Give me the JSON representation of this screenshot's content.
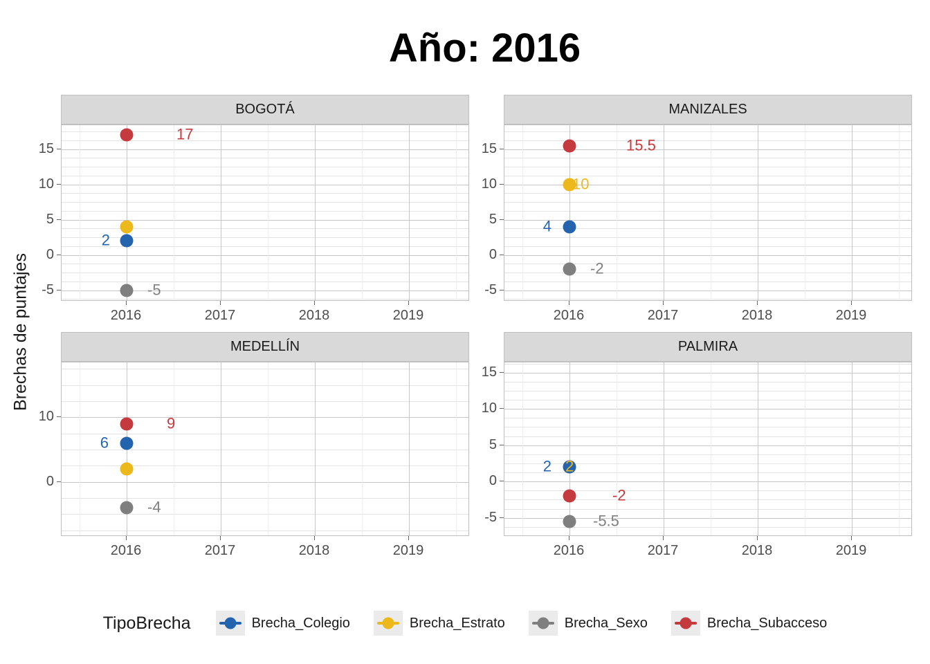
{
  "title": "Año: 2016",
  "ylabel": "Brechas de puntajes",
  "legend": {
    "title": "TipoBrecha"
  },
  "chart_data": {
    "type": "scatter",
    "facet_variable": "city",
    "x_variable": "year",
    "x_ticks": [
      2016,
      2017,
      2018,
      2019
    ],
    "xlim": [
      2015.3,
      2019.65
    ],
    "grid": "on",
    "legend_position": "bottom",
    "series": [
      {
        "name": "Brecha_Colegio",
        "color": "#2464AE"
      },
      {
        "name": "Brecha_Estrato",
        "color": "#EDB81C"
      },
      {
        "name": "Brecha_Sexo",
        "color": "#7F7F7F"
      },
      {
        "name": "Brecha_Subacceso",
        "color": "#C53A3D"
      }
    ],
    "panels": [
      {
        "name": "BOGOTÁ",
        "row": 0,
        "col": 0,
        "ylim": [
          -6.6,
          18.4
        ],
        "yticks": [
          -5,
          0,
          5,
          10,
          15
        ],
        "tick_step": 5,
        "points": [
          {
            "series": "Brecha_Estrato",
            "x": 2016,
            "y": 4,
            "label": null
          },
          {
            "series": "Brecha_Colegio",
            "x": 2016,
            "y": 2,
            "label": "2",
            "label_dx": -24,
            "label_anchor": "end"
          },
          {
            "series": "Brecha_Sexo",
            "x": 2016,
            "y": -5,
            "label": "-5",
            "label_dx": 30,
            "label_anchor": "start"
          },
          {
            "series": "Brecha_Subacceso",
            "x": 2016,
            "y": 17,
            "label": "17",
            "label_dx": 72,
            "label_anchor": "start"
          }
        ]
      },
      {
        "name": "MANIZALES",
        "row": 0,
        "col": 1,
        "ylim": [
          -6.6,
          18.4
        ],
        "yticks": [
          -5,
          0,
          5,
          10,
          15
        ],
        "tick_step": 5,
        "points": [
          {
            "series": "Brecha_Estrato",
            "x": 2016,
            "y": 10,
            "label": "10",
            "label_dx": 4,
            "label_anchor": "start"
          },
          {
            "series": "Brecha_Colegio",
            "x": 2016,
            "y": 4,
            "label": "4",
            "label_dx": -26,
            "label_anchor": "end"
          },
          {
            "series": "Brecha_Sexo",
            "x": 2016,
            "y": -2,
            "label": "-2",
            "label_dx": 30,
            "label_anchor": "start"
          },
          {
            "series": "Brecha_Subacceso",
            "x": 2016,
            "y": 15.5,
            "label": "15.5",
            "label_dx": 82,
            "label_anchor": "start"
          }
        ]
      },
      {
        "name": "MEDELLÍN",
        "row": 1,
        "col": 0,
        "ylim": [
          -8.5,
          18.5
        ],
        "yticks": [
          0,
          10
        ],
        "tick_step": 10,
        "points": [
          {
            "series": "Brecha_Estrato",
            "x": 2016,
            "y": 2,
            "label": null
          },
          {
            "series": "Brecha_Colegio",
            "x": 2016,
            "y": 6,
            "label": "6",
            "label_dx": -26,
            "label_anchor": "end"
          },
          {
            "series": "Brecha_Sexo",
            "x": 2016,
            "y": -4,
            "label": "-4",
            "label_dx": 30,
            "label_anchor": "start"
          },
          {
            "series": "Brecha_Subacceso",
            "x": 2016,
            "y": 9,
            "label": "9",
            "label_dx": 58,
            "label_anchor": "start"
          }
        ]
      },
      {
        "name": "PALMIRA",
        "row": 1,
        "col": 1,
        "ylim": [
          -7.6,
          16.4
        ],
        "yticks": [
          -5,
          0,
          5,
          10,
          15
        ],
        "tick_step": 5,
        "points": [
          {
            "series": "Brecha_Estrato",
            "x": 2016,
            "y": 2,
            "label": "2",
            "label_dx": -6,
            "label_anchor": "start"
          },
          {
            "series": "Brecha_Colegio",
            "x": 2016,
            "y": 2,
            "label": "2",
            "label_dx": -26,
            "label_anchor": "end"
          },
          {
            "series": "Brecha_Sexo",
            "x": 2016,
            "y": -5.5,
            "label": "-5.5",
            "label_dx": 34,
            "label_anchor": "start"
          },
          {
            "series": "Brecha_Subacceso",
            "x": 2016,
            "y": -2,
            "label": "-2",
            "label_dx": 62,
            "label_anchor": "start"
          }
        ]
      }
    ]
  }
}
